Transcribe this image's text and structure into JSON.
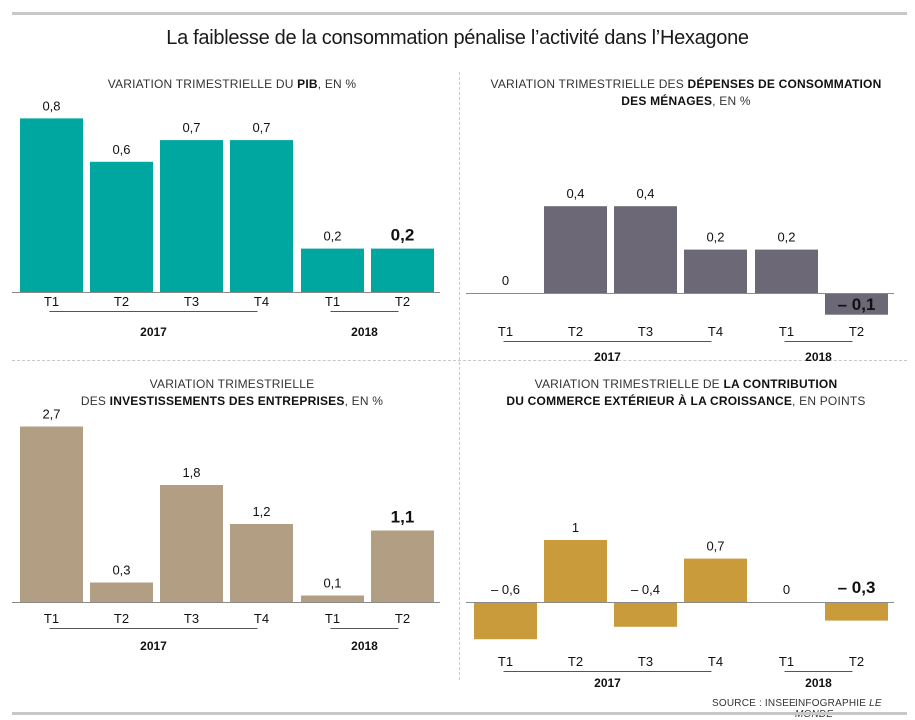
{
  "title": "La faiblesse de la consommation pénalise l’activité dans l’Hexagone",
  "source": "SOURCE : INSEE",
  "credit_prefix": "INFOGRAPHIE",
  "credit_name": "LE MONDE",
  "panels": [
    {
      "title_parts": [
        {
          "text": "VARIATION TRIMESTRIELLE DU ",
          "bold": false
        },
        {
          "text": "PIB",
          "bold": true
        },
        {
          "text": ", EN %",
          "bold": false
        }
      ]
    },
    {
      "title_parts": [
        {
          "text": "VARIATION TRIMESTRIELLE DES ",
          "bold": false
        },
        {
          "text": "DÉPENSES DE CONSOMMATION",
          "bold": true
        },
        {
          "text": "\n",
          "bold": false
        },
        {
          "text": "DES MÉNAGES",
          "bold": true
        },
        {
          "text": ", EN %",
          "bold": false
        }
      ]
    },
    {
      "title_parts": [
        {
          "text": "VARIATION TRIMESTRIELLE",
          "bold": false
        },
        {
          "text": "\n",
          "bold": false
        },
        {
          "text": "DES ",
          "bold": false
        },
        {
          "text": "INVESTISSEMENTS DES ENTREPRISES",
          "bold": true
        },
        {
          "text": ", EN %",
          "bold": false
        }
      ]
    },
    {
      "title_parts": [
        {
          "text": "VARIATION TRIMESTRIELLE DE ",
          "bold": false
        },
        {
          "text": "LA CONTRIBUTION",
          "bold": true
        },
        {
          "text": "\n",
          "bold": false
        },
        {
          "text": "DU COMMERCE EXTÉRIEUR À LA CROISSANCE",
          "bold": true
        },
        {
          "text": ", EN POINTS",
          "bold": false
        }
      ]
    }
  ],
  "chart_data": [
    {
      "type": "bar",
      "color": "#00a6a0",
      "categories": [
        "T1",
        "T2",
        "T3",
        "T4",
        "T1",
        "T2"
      ],
      "groups": [
        {
          "label": "2017",
          "count": 4
        },
        {
          "label": "2018",
          "count": 2
        }
      ],
      "values": [
        0.8,
        0.6,
        0.7,
        0.7,
        0.2,
        0.2
      ],
      "value_labels": [
        "0,8",
        "0,6",
        "0,7",
        "0,7",
        "0,2",
        "0,2"
      ],
      "highlight_last": true
    },
    {
      "type": "bar",
      "color": "#6c6875",
      "categories": [
        "T1",
        "T2",
        "T3",
        "T4",
        "T1",
        "T2"
      ],
      "groups": [
        {
          "label": "2017",
          "count": 4
        },
        {
          "label": "2018",
          "count": 2
        }
      ],
      "values": [
        0,
        0.4,
        0.4,
        0.2,
        0.2,
        -0.1
      ],
      "value_labels": [
        "0",
        "0,4",
        "0,4",
        "0,2",
        "0,2",
        "– 0,1"
      ],
      "highlight_last": true
    },
    {
      "type": "bar",
      "color": "#b19e83",
      "categories": [
        "T1",
        "T2",
        "T3",
        "T4",
        "T1",
        "T2"
      ],
      "groups": [
        {
          "label": "2017",
          "count": 4
        },
        {
          "label": "2018",
          "count": 2
        }
      ],
      "values": [
        2.7,
        0.3,
        1.8,
        1.2,
        0.1,
        1.1
      ],
      "value_labels": [
        "2,7",
        "0,3",
        "1,8",
        "1,2",
        "0,1",
        "1,1"
      ],
      "highlight_last": true
    },
    {
      "type": "bar",
      "color": "#c99b3a",
      "categories": [
        "T1",
        "T2",
        "T3",
        "T4",
        "T1",
        "T2"
      ],
      "groups": [
        {
          "label": "2017",
          "count": 4
        },
        {
          "label": "2018",
          "count": 2
        }
      ],
      "values": [
        -0.6,
        1,
        -0.4,
        0.7,
        0,
        -0.3
      ],
      "value_labels": [
        "– 0,6",
        "1",
        "– 0,4",
        "0,7",
        "0",
        "– 0,3"
      ],
      "highlight_last": true
    }
  ]
}
